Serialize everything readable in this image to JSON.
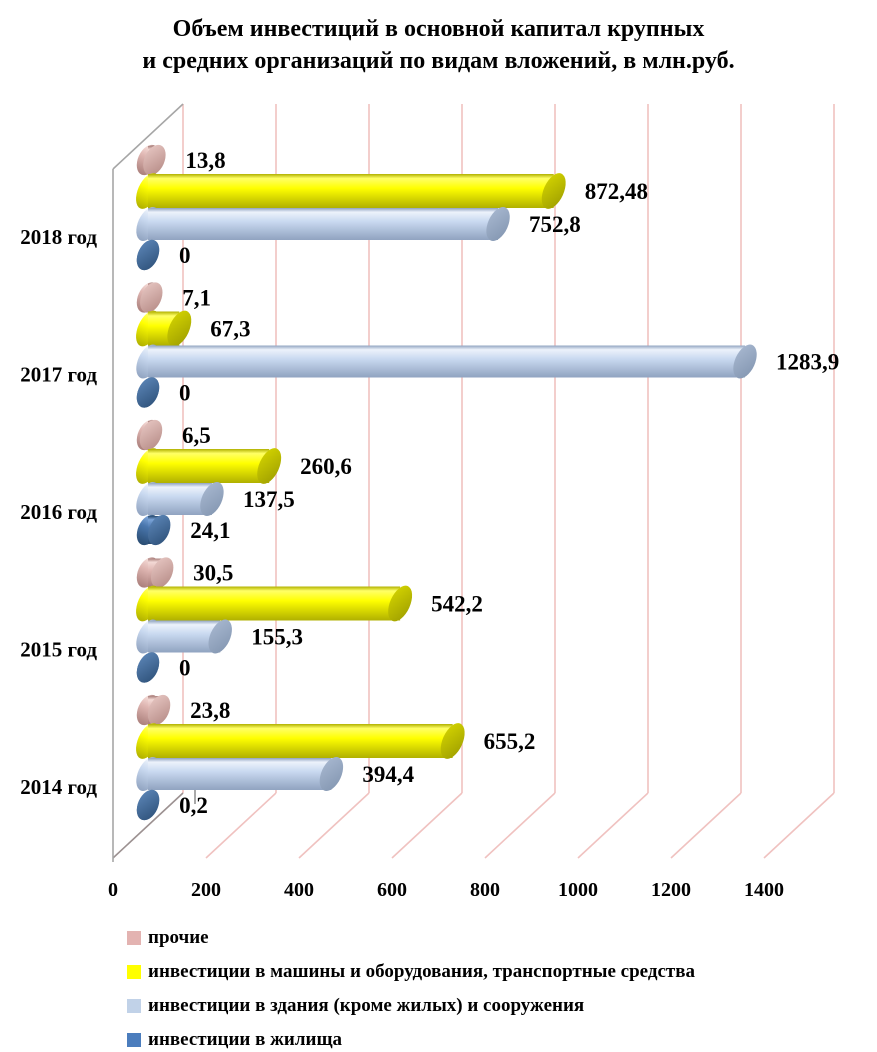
{
  "title": {
    "line1": "Объем инвестиций в основной капитал крупных",
    "line2": "и средних организаций по видам вложений, в млн.руб."
  },
  "chart_data": {
    "type": "bar",
    "orientation": "horizontal",
    "style": "3d-cylinder",
    "units": "млн.руб.",
    "categories": [
      "2018 год",
      "2017 год",
      "2016 год",
      "2015 год",
      "2014 год"
    ],
    "series": [
      {
        "key": "prochie",
        "name": "прочие",
        "legend_color": "#e3b3b1",
        "values": [
          13.8,
          7.1,
          6.5,
          30.5,
          23.8
        ],
        "labels": [
          "13,8",
          "7,1",
          "6,5",
          "30,5",
          "23,8"
        ],
        "shading": {
          "light": "#f3d9d5",
          "mid": "#dfb6b2",
          "dark": "#aa7f7b",
          "cap_light": "#e9c9c5",
          "cap_dark": "#b48984"
        }
      },
      {
        "key": "mashiny",
        "name": "инвестиции в машины и оборудования, транспортные средства",
        "legend_color": "#ffff00",
        "values": [
          872.48,
          67.3,
          260.6,
          542.2,
          655.2
        ],
        "labels": [
          "872,48",
          "67,3",
          "260,6",
          "542,2",
          "655,2"
        ],
        "shading": {
          "light": "#ffff66",
          "mid": "#ffff00",
          "dark": "#b0b000",
          "cap_light": "#d6d600",
          "cap_dark": "#9d9d00"
        }
      },
      {
        "key": "zdaniya",
        "name": "инвестиции в здания (кроме жилых) и сооружения",
        "legend_color": "#c1d2e8",
        "values": [
          752.8,
          1283.9,
          137.5,
          155.3,
          394.4
        ],
        "labels": [
          "752,8",
          "1283,9",
          "137,5",
          "155,3",
          "394,4"
        ],
        "shading": {
          "light": "#ecf2fb",
          "mid": "#c9d9f0",
          "dark": "#90a3c0",
          "cap_light": "#a9b9d1",
          "cap_dark": "#8295b0"
        }
      },
      {
        "key": "zhilishcha",
        "name": "инвестиции в жилища",
        "legend_color": "#4b7dbd",
        "values": [
          0,
          0,
          24.1,
          0,
          0.2
        ],
        "labels": [
          "0",
          "0",
          "24,1",
          "0",
          "0,2"
        ],
        "shading": {
          "light": "#7ba4d8",
          "mid": "#4a77ae",
          "dark": "#294b70",
          "cap_light": "#5e88ba",
          "cap_dark": "#2c4f77"
        }
      }
    ],
    "x_axis": {
      "min": 0,
      "max": 1400,
      "tick_step": 200,
      "tick_labels": [
        "0",
        "200",
        "400",
        "600",
        "800",
        "1000",
        "1200",
        "1400"
      ]
    },
    "grid": true,
    "gridline_color": "#f0c2c0",
    "wall_edge_color": "#a6a6a6",
    "zero_floor_edge_color": "#9c9191",
    "leader_tick_color": "#8c8c8c",
    "legend_position": "bottom-left",
    "text_color": "#000000"
  }
}
